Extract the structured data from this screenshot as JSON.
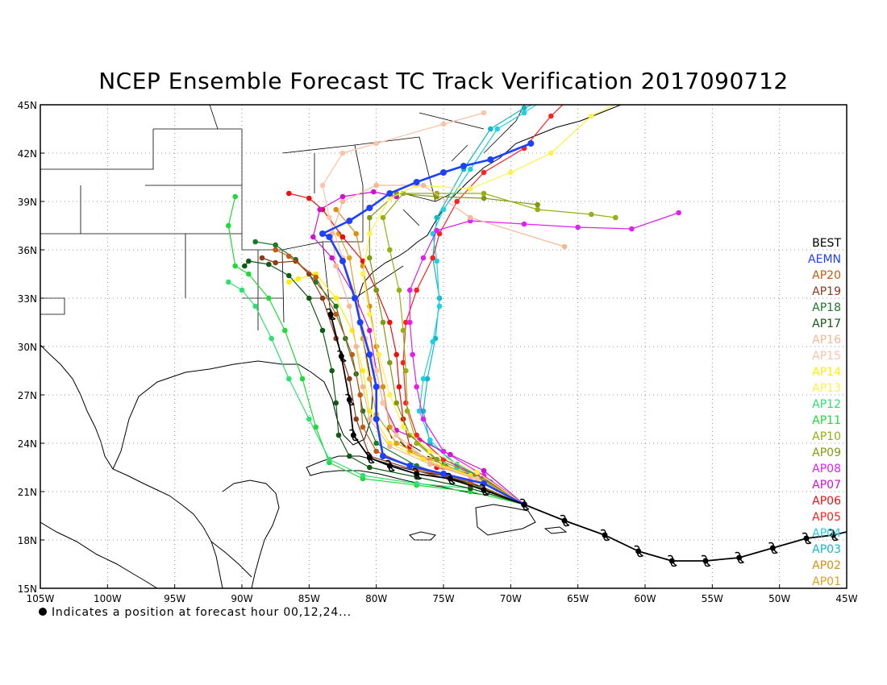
{
  "title": "NCEP Ensemble Forecast TC Track Verification 2017090712",
  "footnote": "Indicates a position at forecast hour 00,12,24...",
  "map_extent": {
    "lon": [
      -105,
      -45
    ],
    "lat": [
      15,
      45
    ]
  },
  "lat_ticks": [
    "15N",
    "18N",
    "21N",
    "24N",
    "27N",
    "30N",
    "33N",
    "36N",
    "39N",
    "42N",
    "45N"
  ],
  "lon_ticks": [
    "105W",
    "100W",
    "95W",
    "90W",
    "85W",
    "80W",
    "75W",
    "70W",
    "65W",
    "60W",
    "55W",
    "50W",
    "45W"
  ],
  "legend": [
    {
      "label": "BEST",
      "color": "#000000"
    },
    {
      "label": "AEMN",
      "color": "#1e40ff"
    },
    {
      "label": "AP20",
      "color": "#c45a10"
    },
    {
      "label": "AP19",
      "color": "#8b3a1a"
    },
    {
      "label": "AP18",
      "color": "#1a7a2a"
    },
    {
      "label": "AP17",
      "color": "#0f5a14"
    },
    {
      "label": "AP16",
      "color": "#f5b895"
    },
    {
      "label": "AP15",
      "color": "#f9c4a8"
    },
    {
      "label": "AP14",
      "color": "#ffee00"
    },
    {
      "label": "AP13",
      "color": "#fff04a"
    },
    {
      "label": "AP12",
      "color": "#2ee070"
    },
    {
      "label": "AP11",
      "color": "#22d83a"
    },
    {
      "label": "AP10",
      "color": "#94b014"
    },
    {
      "label": "AP09",
      "color": "#7f9a10"
    },
    {
      "label": "AP08",
      "color": "#e020f0"
    },
    {
      "label": "AP07",
      "color": "#d010d0"
    },
    {
      "label": "AP06",
      "color": "#e81010"
    },
    {
      "label": "AP05",
      "color": "#ff2020"
    },
    {
      "label": "AP04",
      "color": "#20d0e0"
    },
    {
      "label": "AP03",
      "color": "#10b8c8"
    },
    {
      "label": "AP02",
      "color": "#d89010"
    },
    {
      "label": "AP01",
      "color": "#e0a020"
    }
  ],
  "tracks": {
    "BEST": [
      [
        -44,
        18.7
      ],
      [
        -46,
        18.3
      ],
      [
        -48,
        18.1
      ],
      [
        -50.5,
        17.5
      ],
      [
        -53,
        16.9
      ],
      [
        -55.5,
        16.7
      ],
      [
        -58,
        16.7
      ],
      [
        -60.5,
        17.3
      ],
      [
        -63,
        18.3
      ],
      [
        -66,
        19.2
      ],
      [
        -69,
        20.2
      ],
      [
        -72,
        21.1
      ],
      [
        -74.5,
        21.8
      ],
      [
        -77,
        22.1
      ],
      [
        -79,
        22.6
      ],
      [
        -80.5,
        23.1
      ],
      [
        -81.7,
        24.5
      ],
      [
        -82,
        26.7
      ],
      [
        -82.6,
        29.4
      ],
      [
        -83.4,
        32.0
      ]
    ],
    "AEMN": [
      [
        -69,
        20.2
      ],
      [
        -72,
        21.5
      ],
      [
        -75,
        22.1
      ],
      [
        -77.5,
        22.6
      ],
      [
        -79.5,
        23.2
      ],
      [
        -80,
        25.5
      ],
      [
        -80,
        27.5
      ],
      [
        -80.5,
        29.5
      ],
      [
        -81.2,
        31.5
      ],
      [
        -81.6,
        33.0
      ],
      [
        -82.5,
        35.3
      ],
      [
        -83.5,
        36.8
      ],
      [
        -84,
        37.0
      ],
      [
        -82,
        37.8
      ],
      [
        -80.5,
        38.6
      ],
      [
        -79,
        39.5
      ],
      [
        -77,
        40.2
      ],
      [
        -75,
        40.8
      ],
      [
        -73.5,
        41.2
      ],
      [
        -71.5,
        41.6
      ],
      [
        -68.5,
        42.6
      ]
    ],
    "AP20": [
      [
        -69,
        20.2
      ],
      [
        -73,
        21.6
      ],
      [
        -77,
        22.4
      ],
      [
        -80,
        23.5
      ],
      [
        -81,
        25
      ],
      [
        -81.2,
        27
      ],
      [
        -81.8,
        29.5
      ],
      [
        -83,
        32
      ],
      [
        -84.5,
        34.3
      ],
      [
        -86.5,
        35.6
      ],
      [
        -87.5,
        36
      ]
    ],
    "AP19": [
      [
        -69,
        20.2
      ],
      [
        -73,
        21.4
      ],
      [
        -77,
        22.3
      ],
      [
        -80.5,
        23.2
      ],
      [
        -81.5,
        25.5
      ],
      [
        -82,
        28
      ],
      [
        -83,
        30.5
      ],
      [
        -84,
        33
      ],
      [
        -85,
        34.5
      ],
      [
        -86,
        35.3
      ],
      [
        -87.5,
        35.2
      ],
      [
        -88.5,
        35.5
      ]
    ],
    "AP18": [
      [
        -69,
        20.2
      ],
      [
        -73,
        21.5
      ],
      [
        -77,
        22.6
      ],
      [
        -80,
        24
      ],
      [
        -81,
        26
      ],
      [
        -81.5,
        28.3
      ],
      [
        -82.3,
        30.5
      ],
      [
        -83,
        32.5
      ],
      [
        -84.5,
        34
      ],
      [
        -86,
        35.4
      ],
      [
        -87.5,
        36.3
      ],
      [
        -89,
        36.5
      ]
    ],
    "AP17": [
      [
        -69,
        20.2
      ],
      [
        -73,
        21.2
      ],
      [
        -77,
        21.9
      ],
      [
        -80.5,
        22.5
      ],
      [
        -82,
        23.2
      ],
      [
        -82.8,
        24.5
      ],
      [
        -83,
        26.5
      ],
      [
        -83.3,
        28.5
      ],
      [
        -84,
        31
      ],
      [
        -85,
        33
      ],
      [
        -86.5,
        34.4
      ],
      [
        -88,
        35.1
      ],
      [
        -89.5,
        35.3
      ],
      [
        -89.8,
        35
      ]
    ],
    "AP16": [
      [
        -69,
        20.2
      ],
      [
        -73,
        21.9
      ],
      [
        -76,
        22.7
      ],
      [
        -79,
        23.8
      ],
      [
        -80.5,
        25.5
      ],
      [
        -81,
        27.5
      ],
      [
        -81.5,
        30
      ],
      [
        -82,
        32.5
      ],
      [
        -83,
        35
      ],
      [
        -83.3,
        37
      ],
      [
        -82.5,
        39
      ],
      [
        -80,
        40
      ],
      [
        -76.5,
        40
      ],
      [
        -73,
        38
      ],
      [
        -66,
        36.2
      ]
    ],
    "AP15": [
      [
        -69,
        20.2
      ],
      [
        -72.5,
        21.8
      ],
      [
        -76,
        22.8
      ],
      [
        -78.5,
        24.5
      ],
      [
        -79.5,
        26.5
      ],
      [
        -80,
        28.5
      ],
      [
        -80.8,
        30.5
      ],
      [
        -81.5,
        33
      ],
      [
        -82.5,
        35.5
      ],
      [
        -83.5,
        38
      ],
      [
        -84,
        40
      ],
      [
        -82.5,
        42
      ],
      [
        -80,
        42.6
      ],
      [
        -75,
        43.8
      ],
      [
        -72,
        44.5
      ]
    ],
    "AP14": [
      [
        -69,
        20.2
      ],
      [
        -73,
        22
      ],
      [
        -76.5,
        23
      ],
      [
        -79,
        24
      ],
      [
        -80.5,
        26
      ],
      [
        -81,
        28.5
      ],
      [
        -81.8,
        31
      ],
      [
        -83,
        33
      ],
      [
        -84.5,
        34.5
      ],
      [
        -85.8,
        34.2
      ],
      [
        -86.5,
        34
      ]
    ],
    "AP13": [
      [
        -69,
        20.2
      ],
      [
        -72.5,
        22.2
      ],
      [
        -76,
        23.5
      ],
      [
        -78,
        25
      ],
      [
        -79,
        27
      ],
      [
        -79.8,
        29.5
      ],
      [
        -80.5,
        32
      ],
      [
        -81,
        34.5
      ],
      [
        -80.5,
        37
      ],
      [
        -79,
        39.2
      ],
      [
        -77,
        40
      ],
      [
        -73,
        39.8
      ],
      [
        -70,
        40.8
      ],
      [
        -67,
        42
      ],
      [
        -64,
        44.3
      ],
      [
        -61,
        45.5
      ]
    ],
    "AP12": [
      [
        -69,
        20.2
      ],
      [
        -73,
        21.2
      ],
      [
        -77,
        21.5
      ],
      [
        -81,
        22
      ],
      [
        -83.5,
        23
      ],
      [
        -85,
        25.5
      ],
      [
        -86.5,
        28
      ],
      [
        -87.8,
        30.5
      ],
      [
        -89,
        32.5
      ],
      [
        -90,
        33.5
      ],
      [
        -91,
        34
      ]
    ],
    "AP11": [
      [
        -69,
        20.2
      ],
      [
        -73,
        21
      ],
      [
        -77,
        21.4
      ],
      [
        -81,
        21.8
      ],
      [
        -83.5,
        22.8
      ],
      [
        -84.5,
        25
      ],
      [
        -85.5,
        28
      ],
      [
        -86.8,
        31
      ],
      [
        -88,
        33
      ],
      [
        -89.5,
        34.5
      ],
      [
        -90.5,
        35
      ],
      [
        -91,
        37.5
      ],
      [
        -90.5,
        39.3
      ]
    ],
    "AP10": [
      [
        -69,
        20.2
      ],
      [
        -72,
        21.7
      ],
      [
        -75,
        22.6
      ],
      [
        -77,
        24
      ],
      [
        -77.7,
        26
      ],
      [
        -77.8,
        28.5
      ],
      [
        -78,
        31
      ],
      [
        -78.3,
        33.5
      ],
      [
        -79,
        36
      ],
      [
        -79.5,
        38
      ],
      [
        -78,
        39.5
      ],
      [
        -75.5,
        39.5
      ],
      [
        -72,
        39.5
      ],
      [
        -68,
        38.5
      ],
      [
        -64,
        38.2
      ],
      [
        -62.2,
        38
      ]
    ],
    "AP09": [
      [
        -69,
        20.2
      ],
      [
        -72.5,
        22
      ],
      [
        -75.5,
        23
      ],
      [
        -77.5,
        24.5
      ],
      [
        -78.5,
        26.5
      ],
      [
        -79,
        29
      ],
      [
        -79.5,
        31.5
      ],
      [
        -80,
        33.5
      ],
      [
        -80.5,
        35.5
      ],
      [
        -80.5,
        38
      ],
      [
        -78.5,
        39.5
      ],
      [
        -75.5,
        39.3
      ],
      [
        -72,
        39.2
      ],
      [
        -68,
        38.8
      ]
    ],
    "AP08": [
      [
        -69,
        20.2
      ],
      [
        -72,
        22
      ],
      [
        -75,
        23.5
      ],
      [
        -76.5,
        25.5
      ],
      [
        -77,
        27.5
      ],
      [
        -77.3,
        29.5
      ],
      [
        -77.5,
        31.5
      ],
      [
        -77.5,
        33.5
      ],
      [
        -76.5,
        35.5
      ],
      [
        -75.5,
        37.2
      ],
      [
        -73,
        37.8
      ],
      [
        -69,
        37.6
      ],
      [
        -65,
        37.4
      ],
      [
        -61,
        37.3
      ],
      [
        -57.5,
        38.3
      ]
    ],
    "AP07": [
      [
        -69,
        20.2
      ],
      [
        -72,
        22.3
      ],
      [
        -74.5,
        23.3
      ],
      [
        -76.8,
        24.2
      ],
      [
        -78.5,
        24.8
      ],
      [
        -79.5,
        26.5
      ],
      [
        -80,
        28.5
      ],
      [
        -80.5,
        31
      ],
      [
        -81.5,
        33
      ],
      [
        -83.3,
        35.5
      ],
      [
        -84.7,
        36.8
      ],
      [
        -84.2,
        38.5
      ],
      [
        -82.5,
        39.3
      ],
      [
        -80.2,
        39.6
      ],
      [
        -78.5,
        39.3
      ]
    ],
    "AP06": [
      [
        -69,
        20.2
      ],
      [
        -72.5,
        22
      ],
      [
        -75.5,
        22.5
      ],
      [
        -77.5,
        23.8
      ],
      [
        -78,
        25.5
      ],
      [
        -78.3,
        27.5
      ],
      [
        -78.5,
        29.5
      ],
      [
        -79,
        31.5
      ],
      [
        -80,
        33.5
      ],
      [
        -81,
        35.3
      ],
      [
        -82.5,
        36.8
      ],
      [
        -84,
        38.5
      ],
      [
        -85,
        39.2
      ],
      [
        -86.5,
        39.5
      ]
    ],
    "AP05": [
      [
        -69,
        20.2
      ],
      [
        -72,
        21.8
      ],
      [
        -75,
        23
      ],
      [
        -77,
        24.5
      ],
      [
        -77.8,
        26.5
      ],
      [
        -78,
        29
      ],
      [
        -77.8,
        31.5
      ],
      [
        -77,
        33.5
      ],
      [
        -75.8,
        35.5
      ],
      [
        -75.3,
        37
      ],
      [
        -74,
        39
      ],
      [
        -72,
        40.8
      ],
      [
        -69,
        42.3
      ],
      [
        -67,
        44.3
      ],
      [
        -65.5,
        45.5
      ]
    ],
    "AP04": [
      [
        -69,
        20.2
      ],
      [
        -71.5,
        21.5
      ],
      [
        -74,
        22.5
      ],
      [
        -76,
        24.2
      ],
      [
        -76.8,
        26
      ],
      [
        -76.5,
        28
      ],
      [
        -75.8,
        30.3
      ],
      [
        -75.3,
        32.5
      ],
      [
        -75.5,
        35.3
      ],
      [
        -75.8,
        37
      ],
      [
        -75,
        38.5
      ],
      [
        -73,
        41
      ],
      [
        -71,
        43.5
      ],
      [
        -69,
        44.5
      ],
      [
        -67.2,
        45.5
      ]
    ],
    "AP03": [
      [
        -69,
        20.2
      ],
      [
        -71.5,
        21.6
      ],
      [
        -74,
        22.7
      ],
      [
        -76,
        24
      ],
      [
        -76.5,
        26
      ],
      [
        -76.2,
        28
      ],
      [
        -75.6,
        30.5
      ],
      [
        -75.3,
        33
      ],
      [
        -75.8,
        35.5
      ],
      [
        -75.5,
        38
      ],
      [
        -73.5,
        41
      ],
      [
        -71.5,
        43.5
      ],
      [
        -69,
        44.8
      ],
      [
        -66.5,
        45.6
      ]
    ],
    "AP02": [
      [
        -69,
        20.2
      ],
      [
        -72,
        21.8
      ],
      [
        -75,
        22.5
      ],
      [
        -77.5,
        23.5
      ],
      [
        -79,
        25
      ],
      [
        -79.5,
        27.5
      ],
      [
        -80,
        30
      ],
      [
        -80.5,
        32.5
      ],
      [
        -81,
        35
      ],
      [
        -81.5,
        37
      ],
      [
        -83,
        38.5
      ]
    ],
    "AP01": [
      [
        -69,
        20.2
      ],
      [
        -72.5,
        21.9
      ],
      [
        -76,
        23
      ],
      [
        -78.5,
        24
      ],
      [
        -80,
        25.8
      ],
      [
        -80.5,
        28
      ],
      [
        -81,
        30.5
      ],
      [
        -81.5,
        33
      ],
      [
        -82,
        35.5
      ],
      [
        -82.8,
        37
      ]
    ]
  }
}
